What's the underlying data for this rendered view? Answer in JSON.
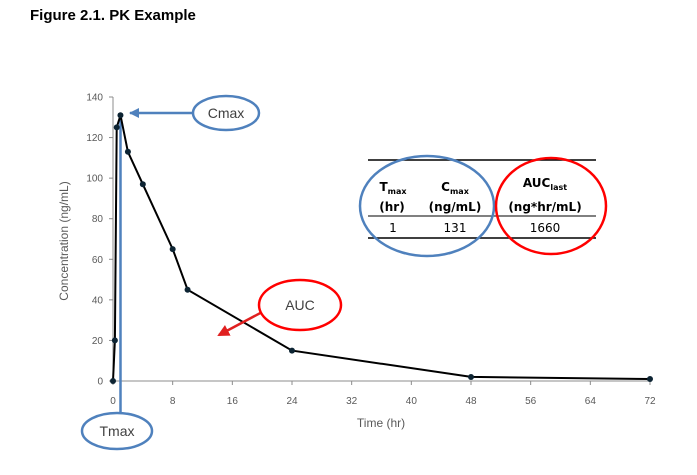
{
  "figure_title": "Figure 2.1. PK Example",
  "chart_data": {
    "type": "line",
    "xlabel": "Time (hr)",
    "ylabel": "Concentration (ng/mL)",
    "xlim": [
      0,
      72
    ],
    "ylim": [
      0,
      140
    ],
    "xticks": [
      0,
      8,
      16,
      24,
      32,
      40,
      48,
      56,
      64,
      72
    ],
    "yticks": [
      0,
      20,
      40,
      60,
      80,
      100,
      120,
      140
    ],
    "grid": false,
    "series": [
      {
        "x": [
          0,
          0.25,
          0.5,
          1,
          2,
          4,
          8,
          10,
          24,
          48,
          72
        ],
        "y": [
          0,
          20,
          125,
          131,
          113,
          97,
          65,
          45,
          15,
          2,
          1
        ]
      }
    ],
    "line_color": "#000000",
    "marker_color": "#0d2433",
    "annotations": {
      "cmax_label": "Cmax",
      "auc_label": "AUC",
      "tmax_label": "Tmax",
      "cmax_color": "#4f81bd",
      "auc_color": "#ff0000"
    },
    "summary_table": {
      "tmax_head_main": "T",
      "tmax_head_sub": "max",
      "tmax_unit": "(hr)",
      "cmax_head_main": "C",
      "cmax_head_sub": "max",
      "cmax_unit": "(ng/mL)",
      "auc_head_main": "AUC",
      "auc_head_sub": "last",
      "auc_unit": "(ng*hr/mL)",
      "tmax_value": "1",
      "cmax_value": "131",
      "auc_value": "1660"
    }
  }
}
